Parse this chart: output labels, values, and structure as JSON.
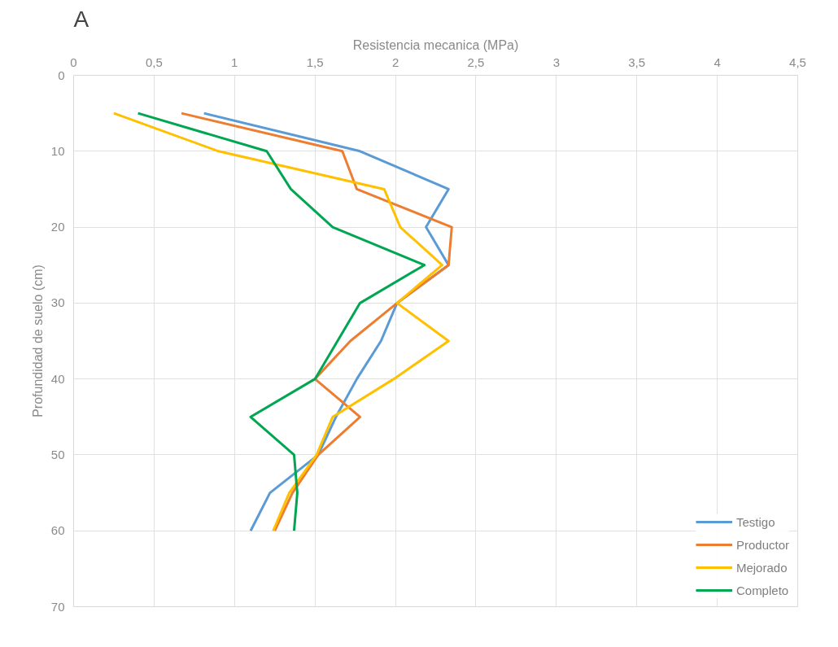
{
  "chart_data": {
    "type": "line",
    "title": "A",
    "xlabel": "Resistencia mecanica (MPa)",
    "ylabel": "Profundidad de suelo (cm)",
    "series": [
      {
        "name": "Testigo",
        "color": "#5b9bd5",
        "x": [
          0.81,
          1.78,
          2.33,
          2.19,
          2.33,
          2.01,
          1.91,
          1.76,
          1.63,
          1.52,
          1.22,
          1.1
        ],
        "values": [
          5,
          10,
          15,
          20,
          25,
          30,
          35,
          40,
          45,
          50,
          55,
          60
        ]
      },
      {
        "name": "Productor",
        "color": "#ed7d31",
        "x": [
          0.67,
          1.67,
          1.76,
          2.35,
          2.33,
          2.01,
          1.72,
          1.5,
          1.78,
          1.52,
          1.36,
          1.25
        ],
        "values": [
          5,
          10,
          15,
          20,
          25,
          30,
          35,
          40,
          45,
          50,
          55,
          60
        ]
      },
      {
        "name": "Mejorado",
        "color": "#ffc000",
        "x": [
          0.25,
          0.9,
          1.93,
          2.03,
          2.29,
          2.01,
          2.33,
          1.99,
          1.61,
          1.51,
          1.34,
          1.24
        ],
        "values": [
          5,
          10,
          15,
          20,
          25,
          30,
          35,
          40,
          45,
          50,
          55,
          60
        ]
      },
      {
        "name": "Completo",
        "color": "#00a651",
        "x": [
          0.4,
          1.2,
          1.35,
          1.61,
          2.18,
          1.78,
          1.64,
          1.5,
          1.1,
          1.37,
          1.39,
          1.37
        ],
        "values": [
          5,
          10,
          15,
          20,
          25,
          30,
          35,
          40,
          45,
          50,
          55,
          60
        ]
      }
    ],
    "xlim": [
      0,
      4.5
    ],
    "xticks": [
      0,
      {
        "value": 0.5,
        "label": "0,5"
      },
      1,
      {
        "value": 1.5,
        "label": "1,5"
      },
      2,
      {
        "value": 2.5,
        "label": "2,5"
      },
      3,
      {
        "value": 3.5,
        "label": "3,5"
      },
      4,
      {
        "value": 4.5,
        "label": "4,5"
      }
    ],
    "ylim": [
      70,
      0
    ],
    "yticks": [
      0,
      10,
      20,
      30,
      40,
      50,
      60,
      70
    ],
    "grid": true,
    "legend": "bottom right",
    "line_style": "solid"
  }
}
